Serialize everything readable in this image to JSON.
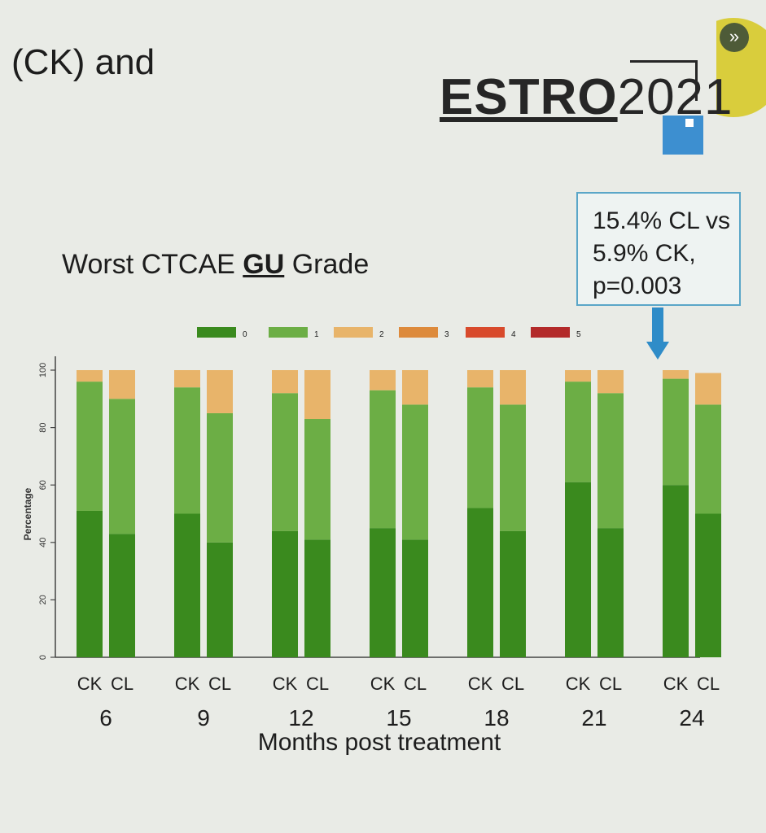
{
  "slide": {
    "title_fragment": "(CK) and"
  },
  "logo": {
    "text_bold": "ESTRO",
    "text_year": "2021"
  },
  "nav": {
    "expand_icon": "double-chevron-right-icon",
    "expand_glyph": "»"
  },
  "callout": {
    "line1": "15.4% CL vs",
    "line2": "5.9% CK,",
    "line3": "p=0.003"
  },
  "chart_title": {
    "prefix": "Worst CTCAE ",
    "emph": "GU",
    "suffix": " Grade"
  },
  "chart_data": {
    "type": "bar",
    "stacked": true,
    "title": "Worst CTCAE GU Grade",
    "xlabel": "Months post treatment",
    "ylabel": "Percentage",
    "ylim": [
      0,
      100
    ],
    "yticks": [
      0,
      20,
      40,
      60,
      80,
      100
    ],
    "legend_position": "top",
    "groups": [
      "6",
      "9",
      "12",
      "15",
      "18",
      "21",
      "24"
    ],
    "subcategories": [
      "CK",
      "CL"
    ],
    "categories": [
      "CK 6",
      "CL 6",
      "CK 9",
      "CL 9",
      "CK 12",
      "CL 12",
      "CK 15",
      "CL 15",
      "CK 18",
      "CL 18",
      "CK 21",
      "CL 21",
      "CK 24",
      "CL 24"
    ],
    "series": [
      {
        "name": "0",
        "color": "#3a8a1e",
        "values": [
          51,
          43,
          50,
          40,
          44,
          41,
          45,
          41,
          52,
          44,
          61,
          45,
          60,
          50
        ]
      },
      {
        "name": "1",
        "color": "#6cae45",
        "values": [
          45,
          47,
          44,
          45,
          48,
          42,
          48,
          47,
          42,
          44,
          35,
          47,
          37,
          38
        ]
      },
      {
        "name": "2",
        "color": "#e8b46a",
        "values": [
          4,
          10,
          6,
          15,
          8,
          17,
          7,
          12,
          6,
          12,
          4,
          8,
          3,
          11
        ]
      },
      {
        "name": "3",
        "color": "#dd8a3c",
        "values": [
          0,
          0,
          0,
          0,
          0,
          0,
          0,
          0,
          0,
          0,
          0,
          0,
          0,
          0
        ]
      },
      {
        "name": "4",
        "color": "#d84a2c",
        "values": [
          0,
          0,
          0,
          0,
          0,
          0,
          0,
          0,
          0,
          0,
          0,
          0,
          0,
          0
        ]
      },
      {
        "name": "5",
        "color": "#b32a2a",
        "values": [
          0,
          0,
          0,
          0,
          0,
          0,
          0,
          0,
          0,
          0,
          0,
          0,
          0,
          0
        ]
      }
    ]
  }
}
